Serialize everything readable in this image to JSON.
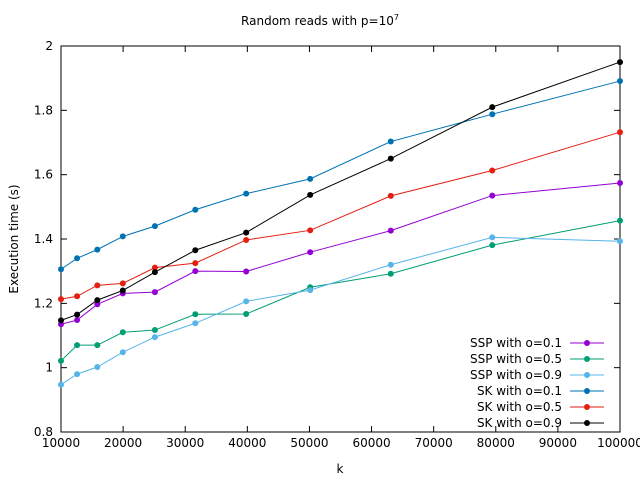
{
  "chart_data": {
    "type": "line",
    "title": "Random reads with p=10",
    "title_sup": "7",
    "xlabel": "k",
    "ylabel": "Execution time (s)",
    "xlim": [
      10000,
      100000
    ],
    "ylim": [
      0.8,
      2.0
    ],
    "xticks": [
      10000,
      20000,
      30000,
      40000,
      50000,
      60000,
      70000,
      80000,
      90000,
      100000
    ],
    "yticks": [
      0.8,
      1.0,
      1.2,
      1.4,
      1.6,
      1.8,
      2.0
    ],
    "ytick_labels": [
      "0.8",
      "1",
      "1.2",
      "1.4",
      "1.6",
      "1.8",
      "2"
    ],
    "grid": false,
    "legend_position": "bottom-right",
    "x": [
      10000,
      12589,
      15849,
      19953,
      25119,
      31623,
      39811,
      50119,
      63096,
      79433,
      100000
    ],
    "series": [
      {
        "name": "SSP with o=0.1",
        "color": "#9400d3",
        "values": [
          1.135,
          1.148,
          1.197,
          1.231,
          1.235,
          1.3,
          1.299,
          1.359,
          1.426,
          1.535,
          1.574
        ]
      },
      {
        "name": "SSP with o=0.5",
        "color": "#009e73",
        "values": [
          1.021,
          1.07,
          1.07,
          1.11,
          1.117,
          1.166,
          1.167,
          1.25,
          1.292,
          1.381,
          1.457
        ]
      },
      {
        "name": "SSP with o=0.9",
        "color": "#56b4e9",
        "values": [
          0.947,
          0.98,
          1.002,
          1.048,
          1.095,
          1.138,
          1.206,
          1.241,
          1.32,
          1.405,
          1.393
        ]
      },
      {
        "name": "SK with o=0.1",
        "color": "#0072b2",
        "values": [
          1.306,
          1.34,
          1.367,
          1.408,
          1.44,
          1.491,
          1.541,
          1.587,
          1.703,
          1.788,
          1.891
        ]
      },
      {
        "name": "SK with o=0.5",
        "color": "#e51e10",
        "values": [
          1.213,
          1.222,
          1.256,
          1.262,
          1.311,
          1.325,
          1.397,
          1.427,
          1.534,
          1.613,
          1.732
        ]
      },
      {
        "name": "SK with o=0.9",
        "color": "#000000",
        "values": [
          1.147,
          1.165,
          1.21,
          1.24,
          1.297,
          1.365,
          1.42,
          1.537,
          1.65,
          1.81,
          1.95
        ]
      }
    ]
  }
}
